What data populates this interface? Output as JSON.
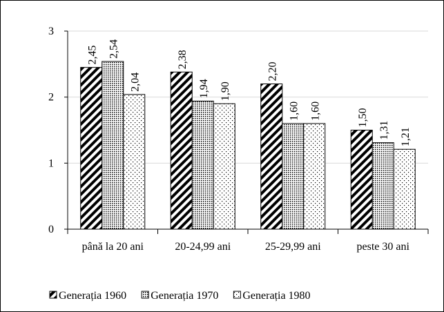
{
  "chart_data": {
    "type": "bar",
    "categories": [
      "până la 20 ani",
      "20-24,99 ani",
      "25-29,99 ani",
      "peste 30 ani"
    ],
    "series": [
      {
        "name": "Generația 1960",
        "color": "#000000",
        "pattern": "hatch",
        "values": [
          2.45,
          2.38,
          2.2,
          1.5
        ],
        "value_labels": [
          "2,45",
          "2,38",
          "2,20",
          "1,50"
        ]
      },
      {
        "name": "Generația 1970",
        "color": "#000000",
        "pattern": "dense-dots",
        "values": [
          2.54,
          1.94,
          1.6,
          1.31
        ],
        "value_labels": [
          "2,54",
          "1,94",
          "1,60",
          "1,31"
        ]
      },
      {
        "name": "Generația 1980",
        "color": "#000000",
        "pattern": "sparse-dots",
        "values": [
          2.04,
          1.9,
          1.6,
          1.21
        ],
        "value_labels": [
          "2,04",
          "1,90",
          "1,60",
          "1,21"
        ]
      }
    ],
    "ylim": [
      0,
      3
    ],
    "yticks": [
      0,
      1,
      2,
      3
    ],
    "grid": true,
    "legend": "bottom"
  }
}
